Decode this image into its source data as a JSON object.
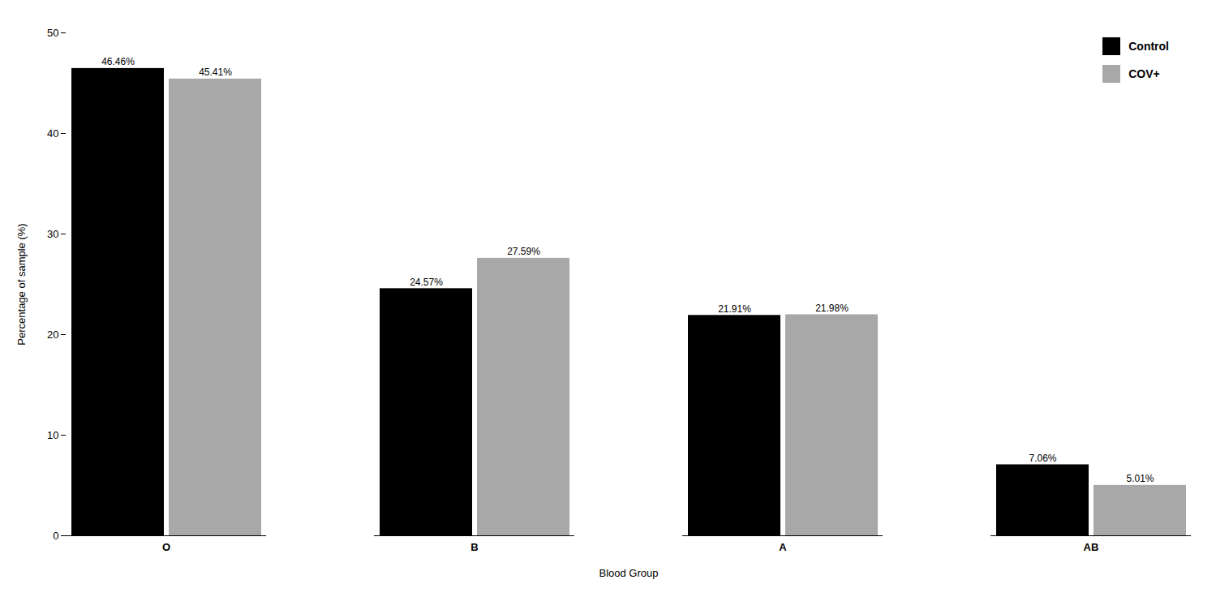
{
  "chart_data": {
    "type": "bar",
    "categories": [
      "O",
      "B",
      "A",
      "AB"
    ],
    "series": [
      {
        "name": "Control",
        "color": "#000000",
        "values": [
          46.46,
          24.57,
          21.91,
          7.06
        ],
        "value_labels": [
          "46.46%",
          "24.57%",
          "21.91%",
          "7.06%"
        ]
      },
      {
        "name": "COV+",
        "color": "#a8a8a8",
        "values": [
          45.41,
          27.59,
          21.98,
          5.01
        ],
        "value_labels": [
          "45.41%",
          "27.59%",
          "21.98%",
          "5.01%"
        ]
      }
    ],
    "xlabel": "Blood Group",
    "ylabel": "Percentage of sample (%)",
    "ylim": [
      0,
      50
    ],
    "yticks": [
      0,
      10,
      20,
      30,
      40,
      50
    ],
    "legend": "upper right",
    "data_labels": true
  }
}
